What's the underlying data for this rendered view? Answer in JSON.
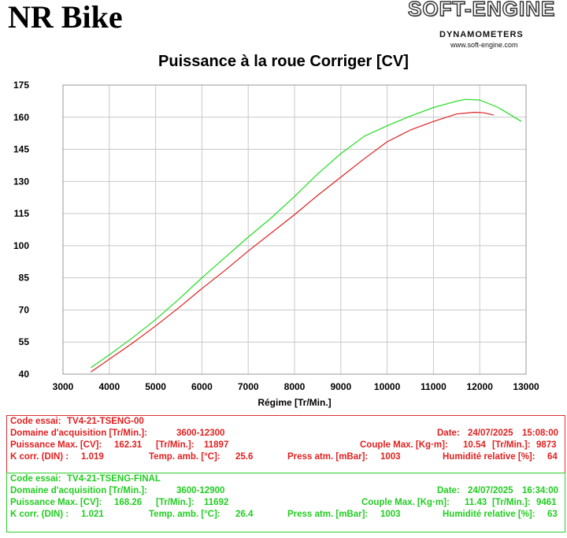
{
  "header": {
    "shop_name": "NR Bike",
    "logo_main": "SOFT-ENGINE",
    "logo_sub": "DYNAMOMETERS",
    "logo_url": "www.soft-engine.com"
  },
  "colors": {
    "red_run": "#e02020",
    "green_run": "#22dd22",
    "grid": "#c8c8c8"
  },
  "chart_data": {
    "type": "line",
    "title": "Puissance à la roue Corriger [CV]",
    "xlabel": "Régime [Tr/Min.]",
    "ylabel": "",
    "xlim": [
      3000,
      13000
    ],
    "ylim": [
      40,
      175
    ],
    "x_ticks": [
      3000,
      4000,
      5000,
      6000,
      7000,
      8000,
      9000,
      10000,
      11000,
      12000,
      13000
    ],
    "y_ticks": [
      40,
      55,
      70,
      85,
      100,
      115,
      130,
      145,
      160,
      175
    ],
    "grid": true,
    "series": [
      {
        "name": "TV4-21-TSENG-00",
        "color": "#e02020",
        "x": [
          3600,
          4000,
          4500,
          5000,
          5500,
          6000,
          6500,
          7000,
          7500,
          8000,
          8500,
          9000,
          9500,
          10000,
          10500,
          11000,
          11500,
          11897,
          12100,
          12300
        ],
        "y": [
          41,
          47,
          54.5,
          62.5,
          71,
          80,
          88.5,
          97.5,
          106,
          114.5,
          123.5,
          132,
          140.5,
          148.5,
          154,
          158,
          161.5,
          162.3,
          162,
          161
        ]
      },
      {
        "name": "TV4-21-TSENG-FINAL",
        "color": "#22dd22",
        "x": [
          3600,
          4000,
          4500,
          5000,
          5500,
          6000,
          6500,
          7000,
          7500,
          8000,
          8500,
          9000,
          9500,
          10000,
          10500,
          11000,
          11500,
          11692,
          12000,
          12400,
          12900
        ],
        "y": [
          43,
          49,
          57,
          65.5,
          75,
          85,
          94.5,
          104,
          113,
          123,
          133.5,
          143,
          151,
          156,
          160.5,
          164.5,
          167.5,
          168.3,
          168,
          164.5,
          158
        ]
      }
    ]
  },
  "runs": [
    {
      "code_label": "Code essai:",
      "code": "TV4-21-TSENG-00",
      "domain_label": "Domaine d'acquisition [Tr/Min.]:",
      "domain": "3600-12300",
      "date_label": "Date:",
      "date": "24/07/2025",
      "time": "15:08:00",
      "power_label": "Puissance Max. [CV]:",
      "power": "162.31",
      "power_rpm_label": "[Tr/Min.]:",
      "power_rpm": "11897",
      "torque_label": "Couple Max. [Kg·m]:",
      "torque": "10.54",
      "torque_rpm_label": "[Tr/Min.]:",
      "torque_rpm": "9873",
      "kcorr_label": "K corr. (DIN) :",
      "kcorr": "1.019",
      "temp_label": "Temp. amb. [°C]:",
      "temp": "25.6",
      "press_label": "Press atm. [mBar]:",
      "press": "1003",
      "hum_label": "Humidité relative [%]:",
      "hum": "64"
    },
    {
      "code_label": "Code essai:",
      "code": "TV4-21-TSENG-FINAL",
      "domain_label": "Domaine d'acquisition [Tr/Min.]:",
      "domain": "3600-12900",
      "date_label": "Date:",
      "date": "24/07/2025",
      "time": "16:34:00",
      "power_label": "Puissance Max. [CV]:",
      "power": "168.26",
      "power_rpm_label": "[Tr/Min.]:",
      "power_rpm": "11692",
      "torque_label": "Couple Max. [Kg·m]:",
      "torque": "11.43",
      "torque_rpm_label": "[Tr/Min.]:",
      "torque_rpm": "9461",
      "kcorr_label": "K corr. (DIN) :",
      "kcorr": "1.021",
      "temp_label": "Temp. amb. [°C]:",
      "temp": "26.4",
      "press_label": "Press atm. [mBar]:",
      "press": "1003",
      "hum_label": "Humidité relative [%]:",
      "hum": "63"
    }
  ]
}
